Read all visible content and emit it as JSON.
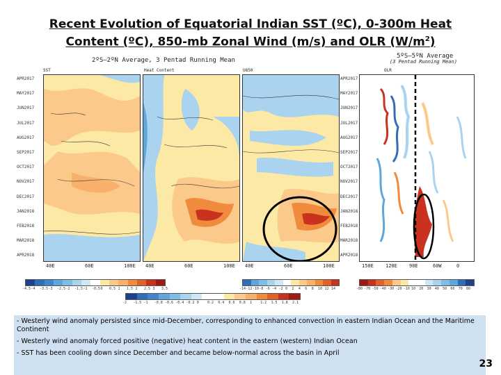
{
  "slide": {
    "title_line1": "Recent Evolution of Equatorial Indian SST (ºC), 0-300m Heat",
    "title_line2_a": "Content (ºC), 850-mb Zonal Wind (m/s) and OLR (W/m",
    "title_line2_sup": "2",
    "title_line2_b": ")",
    "page_number": "23"
  },
  "figure": {
    "left_header": "2ºS–2ºN Average, 3 Pentad Running Mean",
    "right_header_line1": "5ºS–5ºN Average",
    "right_header_line2": "(3 Pentad Running Mean)",
    "panel_titles": [
      "SST",
      "Heat Content",
      "U850",
      "OLR"
    ],
    "months": [
      "APR2017",
      "MAY2017",
      "JUN2017",
      "JUL2017",
      "AUG2017",
      "SEP2017",
      "OCT2017",
      "NOV2017",
      "DEC2017",
      "JAN2018",
      "FEB2018",
      "MAR2018",
      "APR2018"
    ],
    "x_ticks_left": [
      "40E",
      "60E",
      "100E"
    ],
    "x_ticks_right": [
      "150E",
      "120E",
      "90E",
      "60W",
      "0"
    ],
    "colors": {
      "warm_dark": "#c8321e",
      "warm_mid": "#f08a3c",
      "warm_light": "#fbc98a",
      "neutral": "#fde9a6",
      "cool_light": "#a9d3ee",
      "cool_mid": "#5ea6dc",
      "cool_dark": "#2f6fb7",
      "highlight": "#000000"
    },
    "colorbar_sst": [
      "-4.5",
      "-4",
      "-3.5",
      "-3",
      "-2.5",
      "-2",
      "-1.5",
      "-1",
      "-0.5",
      "0",
      "0.5",
      "1",
      "1.5",
      "2",
      "2.5",
      "3",
      "3.5"
    ],
    "colorbar_u": [
      "-14",
      "-12",
      "-10",
      "-8",
      "-6",
      "-4",
      "-2",
      "0",
      "2",
      "4",
      "6",
      "8",
      "10",
      "12",
      "14"
    ],
    "colorbar_olr": [
      "-80",
      "-70",
      "-50",
      "-40",
      "-30",
      "-20",
      "-10",
      "10",
      "20",
      "30",
      "40",
      "50",
      "60",
      "70",
      "80"
    ],
    "colorbar_hc": [
      "-2",
      "-1.5",
      "-1",
      "-0.8",
      "-0.6",
      "-0.4",
      "-0.2",
      "0",
      "0.2",
      "0.4",
      "0.6",
      "0.8",
      "1",
      "1.2",
      "1.5",
      "1.8",
      "2.1"
    ]
  },
  "notes": {
    "line1": "- Westerly wind anomaly persisted since mid-December, corresponding to enhanced convection in eastern Indian Ocean and the Maritime Continent",
    "line2": "- Westerly wind anomaly forced positive (negative) heat content in the eastern (western) Indian Ocean",
    "line3": "- SST has been cooling down since December and became below-normal across the basin in April"
  }
}
